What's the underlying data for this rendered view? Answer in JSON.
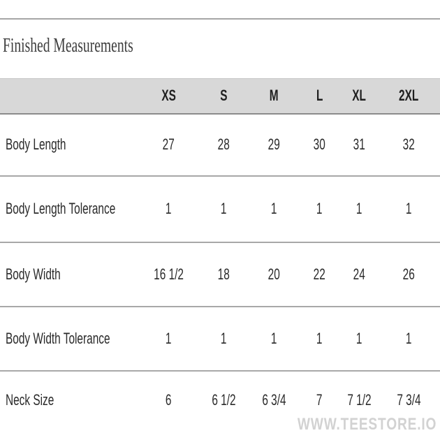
{
  "title": "Finished Measurements",
  "watermark": "WWW.TEESTORE.IO",
  "chart_data": {
    "type": "table",
    "title": "Finished Measurements",
    "columns": [
      "XS",
      "S",
      "M",
      "L",
      "XL",
      "2XL"
    ],
    "rows": [
      {
        "label": "Body Length",
        "values": [
          "27",
          "28",
          "29",
          "30",
          "31",
          "32"
        ]
      },
      {
        "label": "Body Length Tolerance",
        "values": [
          "1",
          "1",
          "1",
          "1",
          "1",
          "1"
        ]
      },
      {
        "label": "Body Width",
        "values": [
          "16 1/2",
          "18",
          "20",
          "22",
          "24",
          "26"
        ]
      },
      {
        "label": "Body Width Tolerance",
        "values": [
          "1",
          "1",
          "1",
          "1",
          "1",
          "1"
        ]
      },
      {
        "label": "Neck Size",
        "values": [
          "6",
          "6 1/2",
          "6 3/4",
          "7",
          "7 1/2",
          "7 3/4"
        ]
      }
    ]
  },
  "colors": {
    "page_bg": "#ffffff",
    "header_bg": "#d8d8d8",
    "header_border_top": "#c6c6c6",
    "header_border_bottom": "#8c8c8c",
    "separator": "#a8a8a8",
    "top_line": "#a6a6a6",
    "text": "#2a2a2a",
    "title_text": "#3d3d3d",
    "watermark": "#d2d2d2"
  }
}
